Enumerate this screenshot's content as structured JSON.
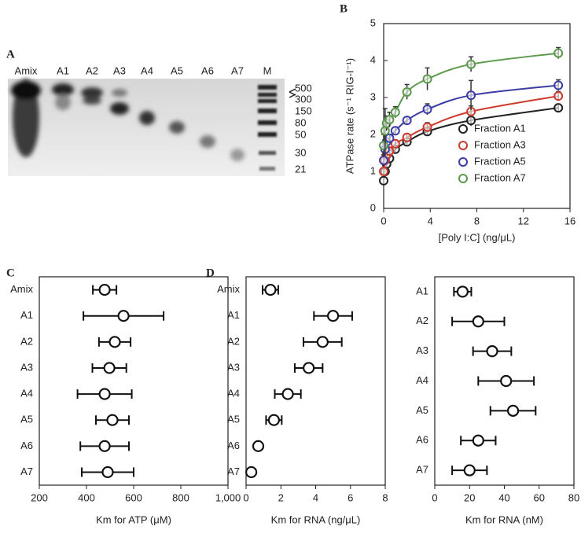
{
  "gel": {
    "panel": "A",
    "lanes": [
      "Amix",
      "A1",
      "A2",
      "A3",
      "A4",
      "A5",
      "A6",
      "A7",
      "M"
    ],
    "markers": [
      "500",
      "300",
      "150",
      "80",
      "50",
      "30",
      "21"
    ]
  },
  "chart_data": [
    {
      "type": "scatter",
      "panel": "B",
      "x_label": "[Poly I:C] (ng/μL)",
      "y_label": "ATPase rate (s⁻¹ RIG-I⁻¹)",
      "x": [
        0,
        0.125,
        0.25,
        0.5,
        1,
        2,
        3.75,
        7.5,
        15
      ],
      "series": [
        {
          "name": "Fraction A1",
          "color": "#222222",
          "values": [
            0.75,
            1.0,
            1.2,
            1.35,
            1.6,
            1.8,
            2.08,
            2.38,
            2.72
          ],
          "errors": [
            0.1,
            0.1,
            0.1,
            0.1,
            0.1,
            0.1,
            0.12,
            0.15,
            0.1
          ]
        },
        {
          "name": "Fraction A3",
          "color": "#cc3a2e",
          "values": [
            1.0,
            1.3,
            1.45,
            1.55,
            1.75,
            1.92,
            2.2,
            2.62,
            3.04
          ],
          "errors": [
            0.1,
            0.1,
            0.1,
            0.1,
            0.1,
            0.1,
            0.12,
            0.15,
            0.12
          ]
        },
        {
          "name": "Fraction A5",
          "color": "#3b3ca5",
          "values": [
            1.3,
            1.6,
            1.8,
            1.9,
            2.1,
            2.38,
            2.68,
            3.06,
            3.33
          ],
          "errors": [
            0.15,
            0.15,
            0.1,
            0.1,
            0.1,
            0.1,
            0.15,
            0.4,
            0.15
          ]
        },
        {
          "name": "Fraction A7",
          "color": "#5b9a4b",
          "values": [
            1.7,
            2.1,
            2.3,
            2.4,
            2.6,
            3.15,
            3.5,
            3.9,
            4.2
          ],
          "errors": [
            0.3,
            0.6,
            0.2,
            0.2,
            0.15,
            0.2,
            0.3,
            0.2,
            0.15
          ]
        }
      ],
      "xlim": [
        0,
        16
      ],
      "xticks": [
        0,
        4,
        8,
        12,
        16
      ],
      "ylim": [
        0,
        5
      ],
      "yticks": [
        0,
        1,
        2,
        3,
        4,
        5
      ],
      "legend": "lower right"
    },
    {
      "type": "dot",
      "panel": "C",
      "x_label": "Km for ATP (μM)",
      "categories": [
        "Amix",
        "A1",
        "A2",
        "A3",
        "A4",
        "A5",
        "A6",
        "A7"
      ],
      "values": [
        477,
        557,
        520,
        497,
        477,
        510,
        477,
        490
      ],
      "errors": [
        50,
        170,
        67,
        72,
        115,
        70,
        103,
        110
      ],
      "xlim": [
        200,
        1000
      ],
      "xticks": [
        200,
        400,
        600,
        800,
        {
          "value": 1000,
          "label": "1,000"
        }
      ]
    },
    {
      "type": "dot",
      "panel": "D",
      "x_label": "Km for RNA (ng/μL)",
      "categories": [
        "Amix",
        "A1",
        "A2",
        "A3",
        "A4",
        "A5",
        "A6",
        "A7"
      ],
      "values": [
        1.4,
        5.0,
        4.4,
        3.6,
        2.4,
        1.6,
        0.7,
        0.3
      ],
      "errors": [
        0.45,
        1.1,
        1.1,
        0.8,
        0.75,
        0.45,
        0.1,
        0.1
      ],
      "xlim": [
        0,
        8
      ],
      "xticks": [
        0,
        2,
        4,
        6,
        8
      ]
    },
    {
      "type": "dot",
      "x_label": "Km for RNA (nM)",
      "categories": [
        "A1",
        "A2",
        "A3",
        "A4",
        "A5",
        "A6",
        "A7"
      ],
      "values": [
        16,
        25,
        33,
        41,
        45,
        25,
        20
      ],
      "errors": [
        5,
        15,
        11,
        16,
        13,
        10,
        10
      ],
      "xlim": [
        0,
        80
      ],
      "xticks": [
        0,
        20,
        40,
        60,
        80
      ]
    }
  ]
}
